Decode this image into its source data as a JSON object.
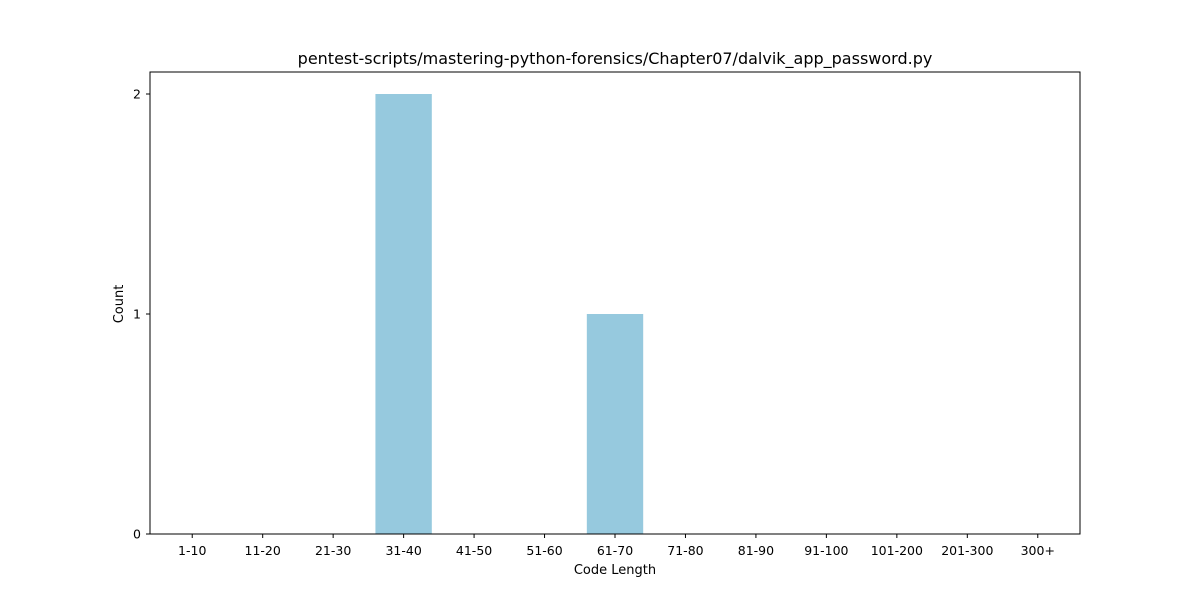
{
  "chart_data": {
    "type": "bar",
    "title": "pentest-scripts/mastering-python-forensics/Chapter07/dalvik_app_password.py",
    "xlabel": "Code Length",
    "ylabel": "Count",
    "categories": [
      "1-10",
      "11-20",
      "21-30",
      "31-40",
      "41-50",
      "51-60",
      "61-70",
      "71-80",
      "81-90",
      "91-100",
      "101-200",
      "201-300",
      "300+"
    ],
    "values": [
      0,
      0,
      0,
      2,
      0,
      0,
      1,
      0,
      0,
      0,
      0,
      0,
      0
    ],
    "ylim": [
      0,
      2.1
    ],
    "yticks": [
      0,
      1,
      2
    ],
    "bar_color": "#96c9de",
    "grid": false,
    "legend": "none"
  }
}
